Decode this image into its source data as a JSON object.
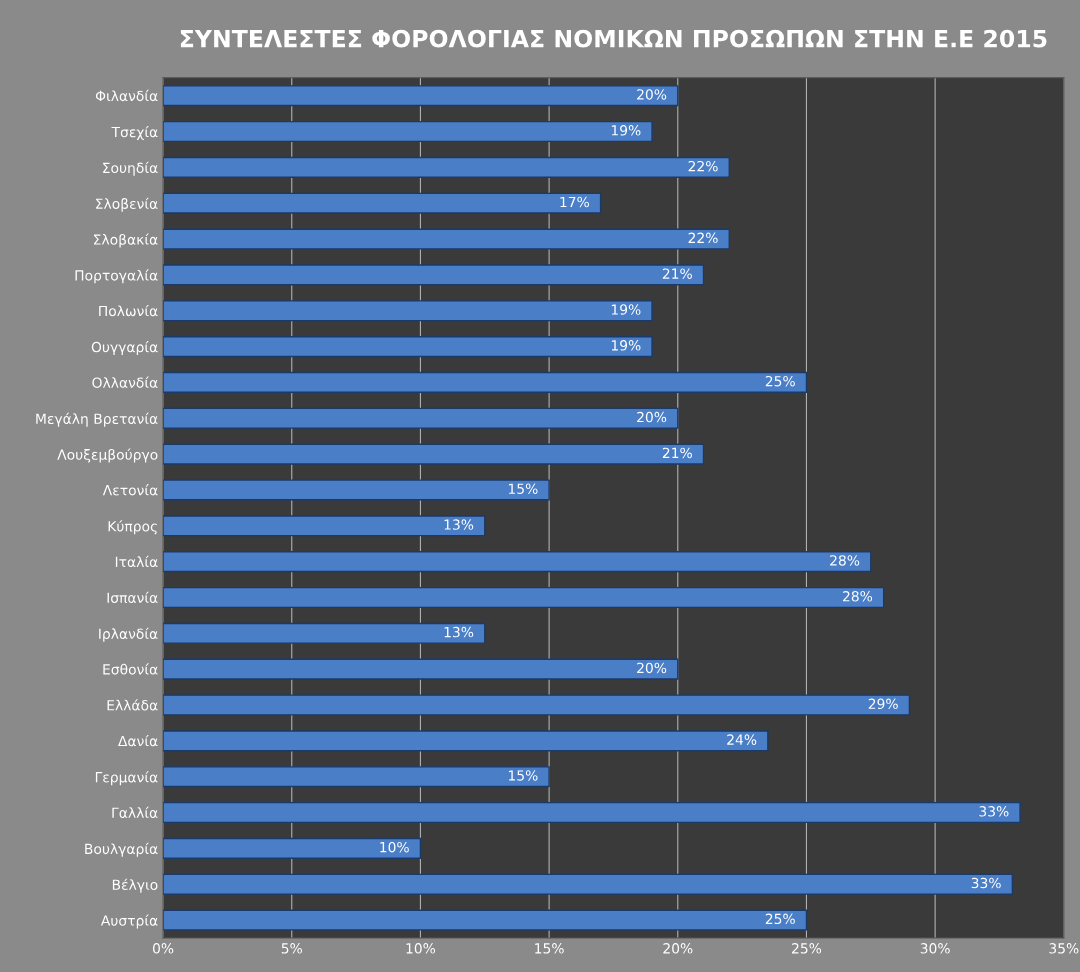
{
  "chart_data": {
    "type": "bar",
    "orientation": "horizontal",
    "title": "ΣΥΝΤΕΛΕΣΤΕΣ ΦΟΡΟΛΟΓΙΑΣ ΝΟΜΙΚΩΝ ΠΡΟΣΩΠΩΝ ΣΤΗΝ Ε.Ε 2015",
    "categories": [
      "Φιλανδία",
      "Τσεχία",
      "Σουηδία",
      "Σλοβενία",
      "Σλοβακία",
      "Πορτογαλία",
      "Πολωνία",
      "Ουγγαρία",
      "Ολλανδία",
      "Μεγάλη Βρετανία",
      "Λουξεμβούργο",
      "Λετονία",
      "Κύπρος",
      "Ιταλία",
      "Ισπανία",
      "Ιρλανδία",
      "Εσθονία",
      "Ελλάδα",
      "Δανία",
      "Γερμανία",
      "Γαλλία",
      "Βουλγαρία",
      "Βέλγιο",
      "Αυστρία"
    ],
    "values": [
      20,
      19,
      22,
      17,
      22,
      21,
      19,
      19,
      25,
      20,
      21,
      15,
      12.5,
      27.5,
      28,
      12.5,
      20,
      29,
      23.5,
      15,
      33.3,
      10,
      33,
      25
    ],
    "value_labels": [
      "20%",
      "19%",
      "22%",
      "17%",
      "22%",
      "21%",
      "19%",
      "19%",
      "25%",
      "20%",
      "21%",
      "15%",
      "13%",
      "28%",
      "28%",
      "13%",
      "20%",
      "29%",
      "24%",
      "15%",
      "33%",
      "10%",
      "33%",
      "25%"
    ],
    "color": "#4a7fc8",
    "xlim": [
      0,
      35
    ],
    "xticks": [
      {
        "value": 0,
        "label": "0%"
      },
      {
        "value": 5,
        "label": "5%"
      },
      {
        "value": 10,
        "label": "10%"
      },
      {
        "value": 15,
        "label": "15%"
      },
      {
        "value": 20,
        "label": "20%"
      },
      {
        "value": 25,
        "label": "25%"
      },
      {
        "value": 30,
        "label": "30%"
      },
      {
        "value": 35,
        "label": "35%"
      }
    ],
    "grid": "x",
    "legend": false
  }
}
